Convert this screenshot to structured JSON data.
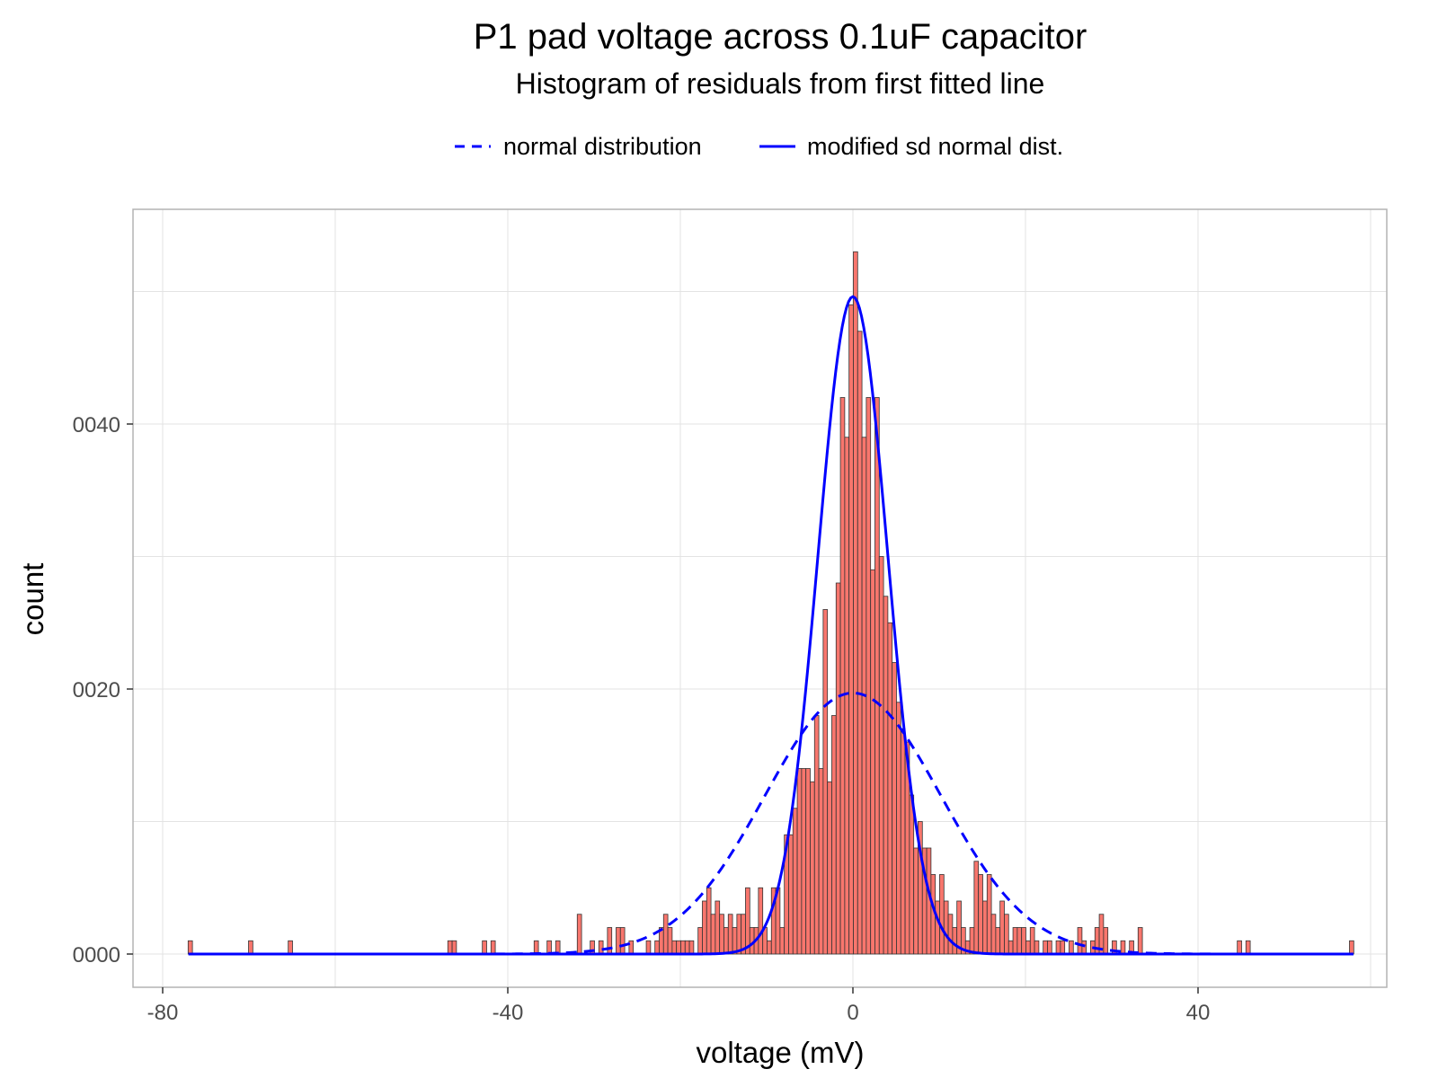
{
  "chart_data": {
    "type": "bar",
    "title": "P1 pad voltage across 0.1uF capacitor",
    "subtitle": "Histogram of residuals from first fitted line",
    "xlabel": "voltage (mV)",
    "ylabel": "count",
    "xlim": [
      -80,
      60
    ],
    "ylim": [
      0,
      0.0053
    ],
    "grid": true,
    "legend_position": "top",
    "x_ticks": [
      -80,
      -40,
      0,
      40
    ],
    "y_ticks": [
      0,
      0.002,
      0.004
    ],
    "y_tick_labels": [
      "0000",
      "0020",
      "0040"
    ],
    "x_tick_labels": [
      "-80",
      "-40",
      "0",
      "40"
    ],
    "bin_width": 0.5,
    "colors": {
      "bar_fill": "#f8766d",
      "bar_outline": "#333333",
      "line": "#0000ff",
      "grid": "#e3e3e3",
      "panel_border": "#b3b3b3"
    },
    "series": [
      {
        "name": "normal distribution",
        "style": "dashed",
        "mean": 0,
        "sd": 10.2
      },
      {
        "name": "modified sd normal dist.",
        "style": "solid",
        "mean": 0,
        "sd": 4.05
      }
    ],
    "bins": [
      [
        -76.8,
        0.0001
      ],
      [
        -69.8,
        0.0001
      ],
      [
        -65.2,
        0.0001
      ],
      [
        -46.7,
        0.0001
      ],
      [
        -46.2,
        0.0001
      ],
      [
        -42.7,
        0.0001
      ],
      [
        -41.7,
        0.0001
      ],
      [
        -36.7,
        0.0001
      ],
      [
        -35.2,
        0.0001
      ],
      [
        -34.2,
        0.0001
      ],
      [
        -31.7,
        0.0003
      ],
      [
        -30.2,
        0.0001
      ],
      [
        -29.2,
        0.0001
      ],
      [
        -28.2,
        0.0002
      ],
      [
        -27.2,
        0.0002
      ],
      [
        -26.7,
        0.0002
      ],
      [
        -25.7,
        0.0001
      ],
      [
        -23.7,
        0.0001
      ],
      [
        -22.7,
        0.0001
      ],
      [
        -22.2,
        0.0002
      ],
      [
        -21.7,
        0.0003
      ],
      [
        -21.2,
        0.0002
      ],
      [
        -20.7,
        0.0001
      ],
      [
        -20.2,
        0.0001
      ],
      [
        -19.7,
        0.0001
      ],
      [
        -19.2,
        0.0001
      ],
      [
        -18.7,
        0.0001
      ],
      [
        -17.7,
        0.0002
      ],
      [
        -17.2,
        0.0004
      ],
      [
        -16.7,
        0.0005
      ],
      [
        -16.2,
        0.0003
      ],
      [
        -15.7,
        0.0004
      ],
      [
        -15.2,
        0.0003
      ],
      [
        -14.7,
        0.0002
      ],
      [
        -14.2,
        0.0003
      ],
      [
        -13.7,
        0.0002
      ],
      [
        -13.2,
        0.0003
      ],
      [
        -12.7,
        0.0003
      ],
      [
        -12.2,
        0.0005
      ],
      [
        -11.7,
        0.0002
      ],
      [
        -11.2,
        0.0002
      ],
      [
        -10.7,
        0.0005
      ],
      [
        -10.2,
        0.0002
      ],
      [
        -9.7,
        0.0001
      ],
      [
        -9.2,
        0.0005
      ],
      [
        -8.7,
        0.0005
      ],
      [
        -8.2,
        0.0002
      ],
      [
        -7.7,
        0.0009
      ],
      [
        -7.2,
        0.0009
      ],
      [
        -6.7,
        0.0011
      ],
      [
        -6.2,
        0.0014
      ],
      [
        -5.7,
        0.0014
      ],
      [
        -5.2,
        0.0014
      ],
      [
        -4.7,
        0.0013
      ],
      [
        -4.2,
        0.0018
      ],
      [
        -3.7,
        0.0014
      ],
      [
        -3.2,
        0.0026
      ],
      [
        -2.7,
        0.0013
      ],
      [
        -2.2,
        0.0018
      ],
      [
        -1.7,
        0.0028
      ],
      [
        -1.2,
        0.0042
      ],
      [
        -0.7,
        0.0039
      ],
      [
        -0.2,
        0.0049
      ],
      [
        0.3,
        0.0053
      ],
      [
        0.8,
        0.0047
      ],
      [
        1.3,
        0.0039
      ],
      [
        1.8,
        0.0042
      ],
      [
        2.3,
        0.0029
      ],
      [
        2.8,
        0.0042
      ],
      [
        3.3,
        0.003
      ],
      [
        3.8,
        0.0027
      ],
      [
        4.3,
        0.0025
      ],
      [
        4.8,
        0.0022
      ],
      [
        5.3,
        0.0019
      ],
      [
        5.8,
        0.0017
      ],
      [
        6.3,
        0.0016
      ],
      [
        6.8,
        0.0012
      ],
      [
        7.3,
        0.0008
      ],
      [
        7.8,
        0.001
      ],
      [
        8.3,
        0.0008
      ],
      [
        8.8,
        0.0008
      ],
      [
        9.3,
        0.0006
      ],
      [
        9.8,
        0.0004
      ],
      [
        10.3,
        0.0006
      ],
      [
        10.8,
        0.0004
      ],
      [
        11.3,
        0.0003
      ],
      [
        11.8,
        0.0002
      ],
      [
        12.3,
        0.0004
      ],
      [
        12.8,
        0.0002
      ],
      [
        13.3,
        0.0001
      ],
      [
        13.8,
        0.0002
      ],
      [
        14.3,
        0.0007
      ],
      [
        14.8,
        0.0006
      ],
      [
        15.3,
        0.0004
      ],
      [
        15.8,
        0.0006
      ],
      [
        16.3,
        0.0003
      ],
      [
        16.8,
        0.0002
      ],
      [
        17.3,
        0.0004
      ],
      [
        17.8,
        0.0003
      ],
      [
        18.3,
        0.0001
      ],
      [
        18.8,
        0.0002
      ],
      [
        19.3,
        0.0002
      ],
      [
        19.8,
        0.0002
      ],
      [
        20.3,
        0.0001
      ],
      [
        20.8,
        0.0002
      ],
      [
        21.3,
        0.0001
      ],
      [
        22.3,
        0.0001
      ],
      [
        22.8,
        0.0001
      ],
      [
        23.8,
        0.0001
      ],
      [
        24.3,
        0.0001
      ],
      [
        25.3,
        0.0001
      ],
      [
        26.3,
        0.0002
      ],
      [
        26.8,
        0.0001
      ],
      [
        27.8,
        0.0001
      ],
      [
        28.3,
        0.0002
      ],
      [
        28.8,
        0.0003
      ],
      [
        29.3,
        0.0002
      ],
      [
        30.3,
        0.0001
      ],
      [
        31.3,
        0.0001
      ],
      [
        32.3,
        0.0001
      ],
      [
        33.3,
        0.0002
      ],
      [
        44.8,
        0.0001
      ],
      [
        45.8,
        0.0001
      ],
      [
        57.8,
        0.0001
      ]
    ]
  }
}
